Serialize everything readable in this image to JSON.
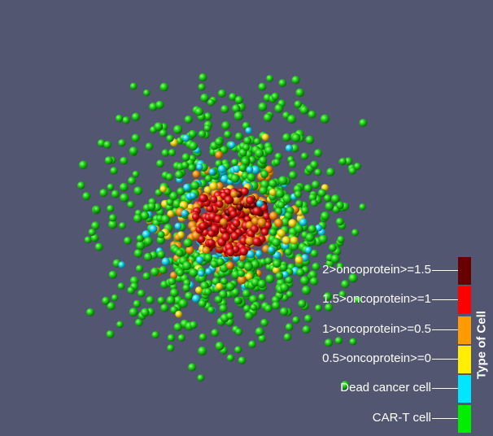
{
  "legend": {
    "title": "Type of Cell",
    "entries": [
      {
        "label": "2>oncoprotein>=1.5",
        "color": "#680000"
      },
      {
        "label": "1.5>oncoprotein>=1",
        "color": "#ff0000"
      },
      {
        "label": "1>oncoprotein>=0.5",
        "color": "#ff9a00"
      },
      {
        "label": "0.5>oncoprotein>=0",
        "color": "#ffee00"
      },
      {
        "label": "Dead cancer cell",
        "color": "#00e6ff"
      },
      {
        "label": "CAR-T cell",
        "color": "#00ee00"
      }
    ]
  },
  "colors": {
    "background": "#535670"
  }
}
